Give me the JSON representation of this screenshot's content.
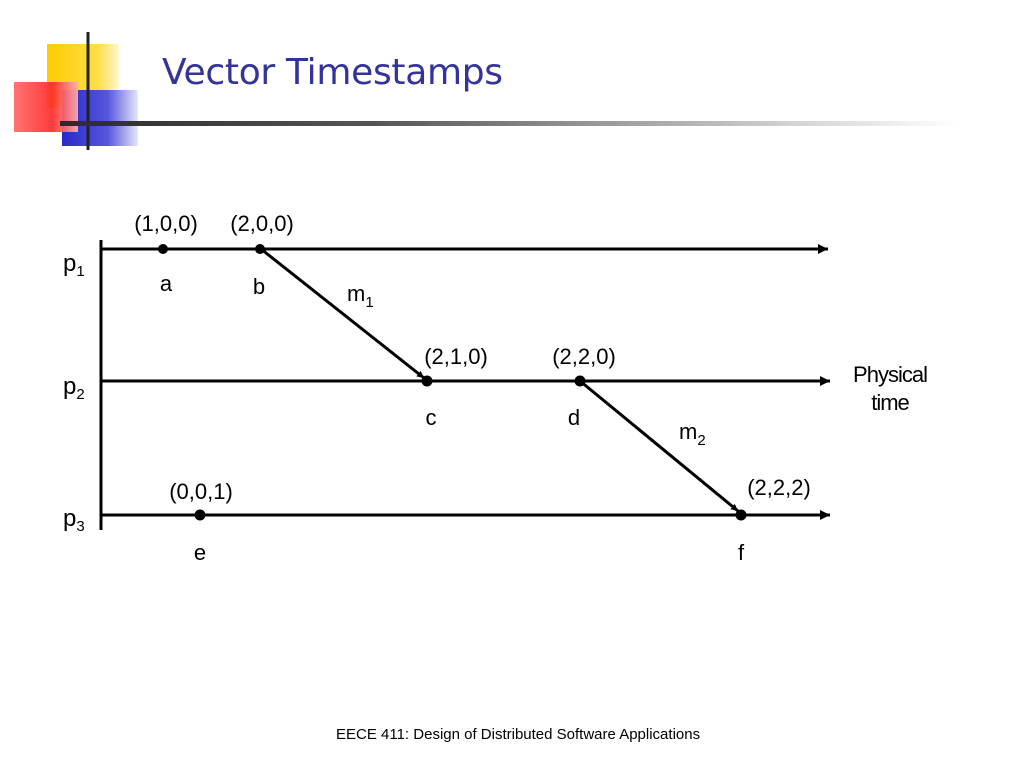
{
  "slide": {
    "title": "Vector Timestamps",
    "footer": "EECE 411: Design of Distributed Software Applications"
  },
  "colors": {
    "title": "#333399",
    "logo_yellow": "#ffcc00",
    "logo_red": "#ff3333",
    "logo_blue": "#3333cc"
  },
  "diagram": {
    "processes": [
      {
        "name": "p",
        "subscript": "1"
      },
      {
        "name": "p",
        "subscript": "2"
      },
      {
        "name": "p",
        "subscript": "3"
      }
    ],
    "events": [
      {
        "label": "a",
        "timestamp": "(1,0,0)",
        "process": 1
      },
      {
        "label": "b",
        "timestamp": "(2,0,0)",
        "process": 1
      },
      {
        "label": "c",
        "timestamp": "(2,1,0)",
        "process": 2
      },
      {
        "label": "d",
        "timestamp": "(2,2,0)",
        "process": 2
      },
      {
        "label": "e",
        "timestamp": "(0,0,1)",
        "process": 3
      },
      {
        "label": "f",
        "timestamp": "(2,2,2)",
        "process": 3
      }
    ],
    "messages": [
      {
        "name": "m",
        "subscript": "1",
        "from": "b",
        "to": "c"
      },
      {
        "name": "m",
        "subscript": "2",
        "from": "d",
        "to": "f"
      }
    ],
    "axis_label_line1": "Physical",
    "axis_label_line2": "time"
  }
}
